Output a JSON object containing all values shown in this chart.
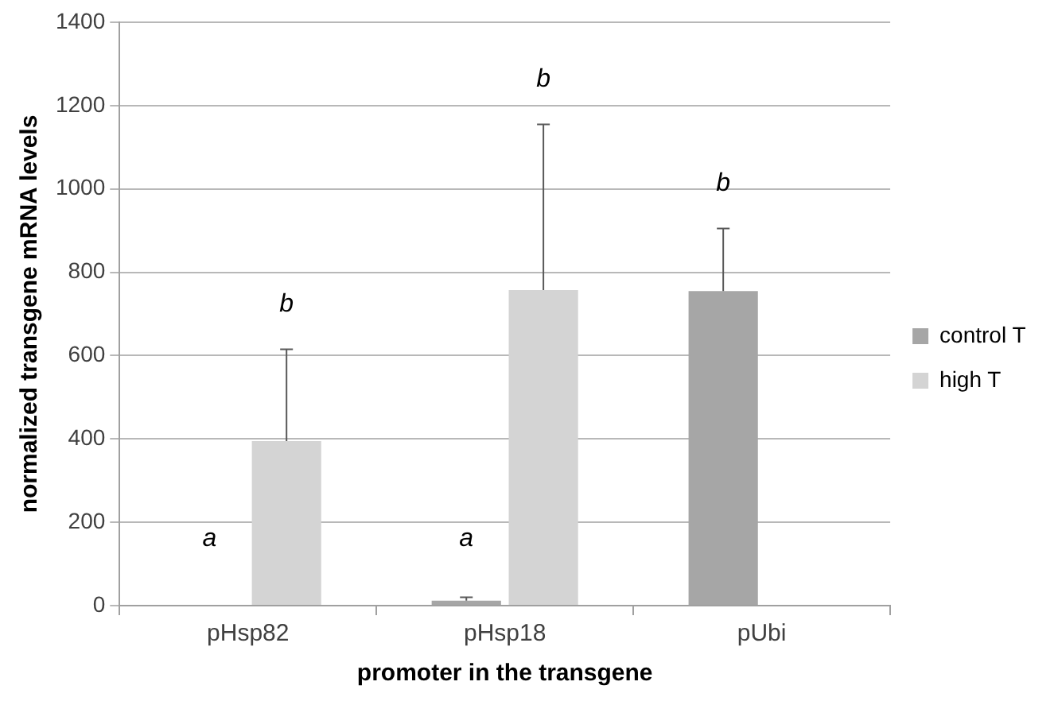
{
  "chart_data": {
    "type": "bar",
    "xlabel": "promoter in the transgene",
    "ylabel": "normalized transgene mRNA levels",
    "categories": [
      "pHsp82",
      "pHsp18",
      "pUbi"
    ],
    "series": [
      {
        "name": "control T",
        "color": "#a6a6a6",
        "values": [
          2,
          12,
          755
        ],
        "errors": [
          null,
          [
            12,
            20
          ],
          [
            755,
            905
          ]
        ]
      },
      {
        "name": "high T",
        "color": "#d4d4d4",
        "values": [
          395,
          757,
          null
        ],
        "errors": [
          [
            395,
            615
          ],
          [
            757,
            1155
          ],
          null
        ]
      }
    ],
    "ylim": [
      0,
      1400
    ],
    "yticks": [
      0,
      200,
      400,
      600,
      800,
      1000,
      1200,
      1400
    ],
    "grid": "y",
    "legend": "right",
    "annotations": [
      {
        "text": "a",
        "x": "pHsp82",
        "y": 160
      },
      "b",
      {
        "text": "a",
        "x": "pHsp18",
        "y": 160
      },
      "b",
      "b"
    ]
  }
}
